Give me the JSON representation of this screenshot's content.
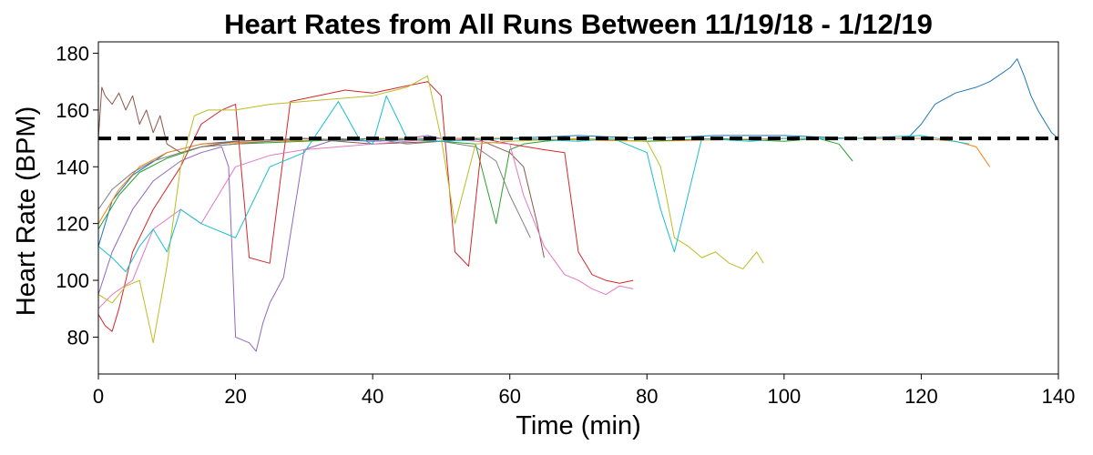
{
  "chart_data": {
    "type": "line",
    "title": "Heart Rates from All Runs Between 11/19/18 - 1/12/19",
    "xlabel": "Time (min)",
    "ylabel": "Heart Rate (BPM)",
    "xlim": [
      0,
      140
    ],
    "ylim": [
      67,
      184
    ],
    "xticks": [
      0,
      20,
      40,
      60,
      80,
      100,
      120,
      140
    ],
    "yticks": [
      80,
      100,
      120,
      140,
      160,
      180
    ],
    "reference_line": {
      "y": 150,
      "style": "dashed",
      "color": "#000000"
    },
    "grid": false,
    "legend": "none",
    "series": [
      {
        "color": "#1f77b4",
        "x": [
          0,
          2,
          5,
          10,
          15,
          20,
          30,
          40,
          50,
          60,
          70,
          80,
          90,
          100,
          110,
          118,
          120,
          122,
          125,
          128,
          130,
          133,
          134,
          135,
          136,
          137,
          138,
          139,
          140
        ],
        "y": [
          112,
          128,
          137,
          145,
          148,
          149,
          150,
          149,
          150,
          150,
          151,
          150,
          151,
          151,
          150,
          150,
          155,
          162,
          166,
          168,
          170,
          175,
          178,
          172,
          165,
          160,
          156,
          152,
          150
        ]
      },
      {
        "color": "#ff7f0e",
        "x": [
          0,
          3,
          6,
          10,
          15,
          25,
          40,
          60,
          80,
          100,
          110,
          120,
          125,
          128,
          130
        ],
        "y": [
          120,
          132,
          140,
          145,
          148,
          149,
          150,
          150,
          149,
          150,
          150,
          150,
          149,
          147,
          140
        ]
      },
      {
        "color": "#2ca02c",
        "x": [
          0,
          3,
          6,
          10,
          15,
          20,
          30,
          40,
          50,
          55,
          58,
          60,
          62,
          65,
          70,
          80,
          90,
          100,
          105,
          108,
          110
        ],
        "y": [
          118,
          130,
          138,
          143,
          147,
          148,
          149,
          150,
          149,
          148,
          120,
          146,
          148,
          149,
          150,
          149,
          150,
          149,
          150,
          148,
          142
        ]
      },
      {
        "color": "#d62728",
        "x": [
          0,
          1,
          2,
          3,
          5,
          8,
          12,
          15,
          18,
          20,
          22,
          25,
          28,
          32,
          36,
          40,
          44,
          48,
          50,
          52,
          54,
          56,
          60,
          65,
          68,
          70,
          72,
          74,
          76,
          78
        ],
        "y": [
          88,
          84,
          82,
          90,
          110,
          125,
          140,
          155,
          160,
          162,
          108,
          106,
          163,
          165,
          167,
          166,
          168,
          170,
          165,
          110,
          105,
          150,
          148,
          146,
          145,
          110,
          102,
          100,
          99,
          100
        ]
      },
      {
        "color": "#9467bd",
        "x": [
          0,
          2,
          5,
          8,
          12,
          15,
          18,
          19,
          20,
          21,
          22,
          23,
          24,
          25,
          27,
          30,
          35,
          40,
          45,
          48,
          50
        ],
        "y": [
          95,
          110,
          125,
          135,
          142,
          145,
          147,
          140,
          80,
          79,
          78,
          75,
          85,
          92,
          101,
          146,
          150,
          149,
          150,
          151,
          150
        ]
      },
      {
        "color": "#8c564b",
        "x": [
          0,
          0.5,
          1,
          2,
          3,
          4,
          5,
          6,
          7,
          8,
          9,
          10,
          12,
          15,
          20,
          30,
          40,
          50,
          55,
          60,
          62,
          64,
          65
        ],
        "y": [
          150,
          168,
          165,
          162,
          166,
          160,
          165,
          155,
          160,
          152,
          158,
          148,
          145,
          147,
          149,
          150,
          148,
          149,
          150,
          145,
          140,
          120,
          108
        ]
      },
      {
        "color": "#e377c2",
        "x": [
          0,
          2,
          5,
          8,
          12,
          15,
          20,
          25,
          30,
          35,
          40,
          45,
          50,
          55,
          60,
          62,
          65,
          68,
          70,
          72,
          74,
          76,
          78
        ],
        "y": [
          90,
          95,
          100,
          118,
          125,
          120,
          140,
          144,
          146,
          147,
          148,
          149,
          150,
          149,
          148,
          130,
          112,
          102,
          100,
          97,
          95,
          98,
          97
        ]
      },
      {
        "color": "#7f7f7f",
        "x": [
          0,
          2,
          5,
          8,
          12,
          15,
          20,
          25,
          30,
          35,
          40,
          45,
          50,
          55,
          58,
          60,
          62,
          63
        ],
        "y": [
          125,
          132,
          138,
          142,
          145,
          147,
          148,
          149,
          150,
          149,
          150,
          148,
          149,
          147,
          142,
          130,
          120,
          115
        ]
      },
      {
        "color": "#bcbd22",
        "x": [
          0,
          2,
          4,
          6,
          8,
          10,
          12,
          14,
          16,
          20,
          25,
          30,
          35,
          40,
          45,
          48,
          50,
          52,
          55,
          60,
          70,
          80,
          82,
          84,
          86,
          88,
          90,
          92,
          94,
          96,
          97
        ],
        "y": [
          95,
          92,
          98,
          100,
          78,
          105,
          140,
          158,
          160,
          160,
          162,
          163,
          164,
          165,
          168,
          172,
          150,
          120,
          148,
          149,
          150,
          149,
          140,
          115,
          112,
          108,
          110,
          106,
          104,
          110,
          106
        ]
      },
      {
        "color": "#17becf",
        "x": [
          0,
          2,
          4,
          6,
          8,
          10,
          12,
          15,
          20,
          25,
          30,
          35,
          38,
          40,
          42,
          45,
          50,
          60,
          70,
          75,
          80,
          82,
          84,
          88,
          95,
          100,
          110,
          120,
          127
        ],
        "y": [
          112,
          108,
          103,
          112,
          118,
          110,
          125,
          120,
          115,
          140,
          145,
          163,
          150,
          148,
          165,
          150,
          149,
          150,
          149,
          150,
          145,
          125,
          110,
          150,
          149,
          150,
          150,
          151,
          148
        ]
      }
    ]
  }
}
